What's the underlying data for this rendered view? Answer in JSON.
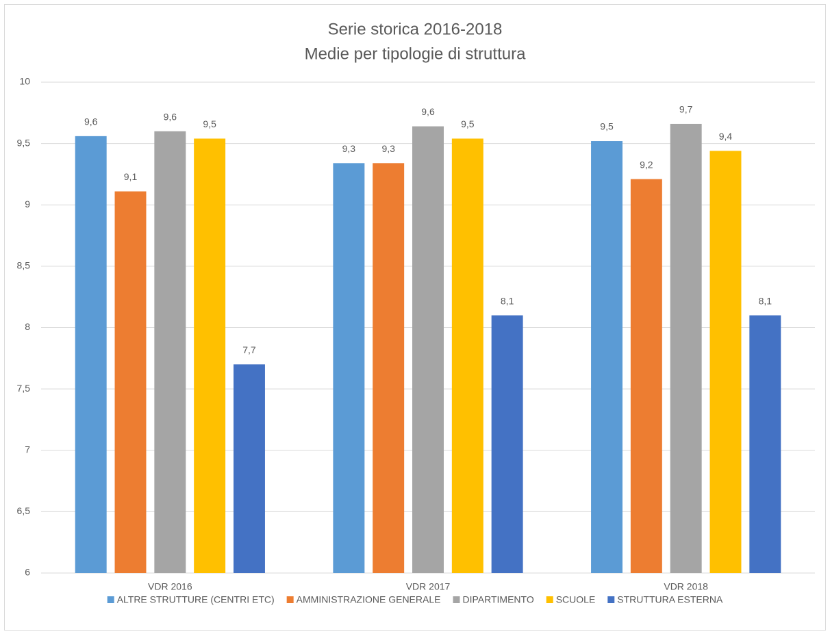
{
  "chart_data": {
    "type": "bar",
    "title": "Serie storica 2016-2018",
    "subtitle": "Medie per tipologie di struttura",
    "categories": [
      "VDR 2016",
      "VDR 2017",
      "VDR 2018"
    ],
    "series": [
      {
        "name": "ALTRE STRUTTURE (CENTRI ETC)",
        "color": "#5b9bd5",
        "values": [
          9.56,
          9.34,
          9.52
        ],
        "value_labels": [
          "9,6",
          "9,3",
          "9,5"
        ]
      },
      {
        "name": "AMMINISTRAZIONE GENERALE",
        "color": "#ed7d31",
        "values": [
          9.11,
          9.34,
          9.21
        ],
        "value_labels": [
          "9,1",
          "9,3",
          "9,2"
        ]
      },
      {
        "name": "DIPARTIMENTO",
        "color": "#a5a5a5",
        "values": [
          9.6,
          9.64,
          9.66
        ],
        "value_labels": [
          "9,6",
          "9,6",
          "9,7"
        ]
      },
      {
        "name": "SCUOLE",
        "color": "#ffc000",
        "values": [
          9.54,
          9.54,
          9.44
        ],
        "value_labels": [
          "9,5",
          "9,5",
          "9,4"
        ]
      },
      {
        "name": "STRUTTURA ESTERNA",
        "color": "#4472c4",
        "values": [
          7.7,
          8.1,
          8.1
        ],
        "value_labels": [
          "7,7",
          "8,1",
          "8,1"
        ]
      }
    ],
    "ylim": [
      6,
      10
    ],
    "yticks": [
      6,
      {
        "value": 6.5,
        "label": "6,5"
      },
      7,
      {
        "value": 7.5,
        "label": "7,5"
      },
      8,
      {
        "value": 8.5,
        "label": "8,5"
      },
      9,
      {
        "value": 9.5,
        "label": "9,5"
      },
      10
    ],
    "grid": true,
    "legend": "bottom"
  }
}
